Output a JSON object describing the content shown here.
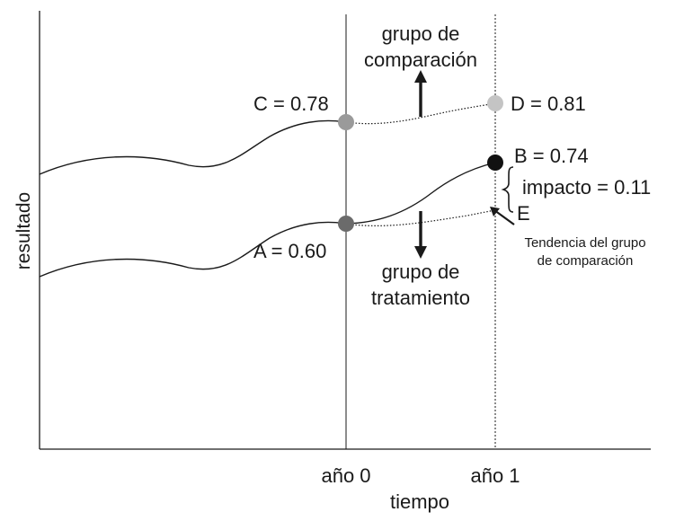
{
  "axes": {
    "y_label": "resultado",
    "x_label": "tiempo",
    "ticks": [
      "año 0",
      "año 1"
    ]
  },
  "points": {
    "A": {
      "label": "A = 0.60",
      "value": 0.6
    },
    "B": {
      "label": "B = 0.74",
      "value": 0.74
    },
    "C": {
      "label": "C = 0.78",
      "value": 0.78
    },
    "D": {
      "label": "D = 0.81",
      "value": 0.81
    },
    "E": {
      "label": "E"
    }
  },
  "groups": {
    "comparison": [
      "grupo de",
      "comparación"
    ],
    "treatment": [
      "grupo de",
      "tratamiento"
    ]
  },
  "impact_label": "impacto = 0.11",
  "trend_note": [
    "Tendencia del grupo",
    "de comparación"
  ],
  "colors": {
    "A": "#6b6b6b",
    "B": "#111111",
    "C": "#9a9a9a",
    "D": "#c4c4c4",
    "line": "#1a1a1a"
  }
}
